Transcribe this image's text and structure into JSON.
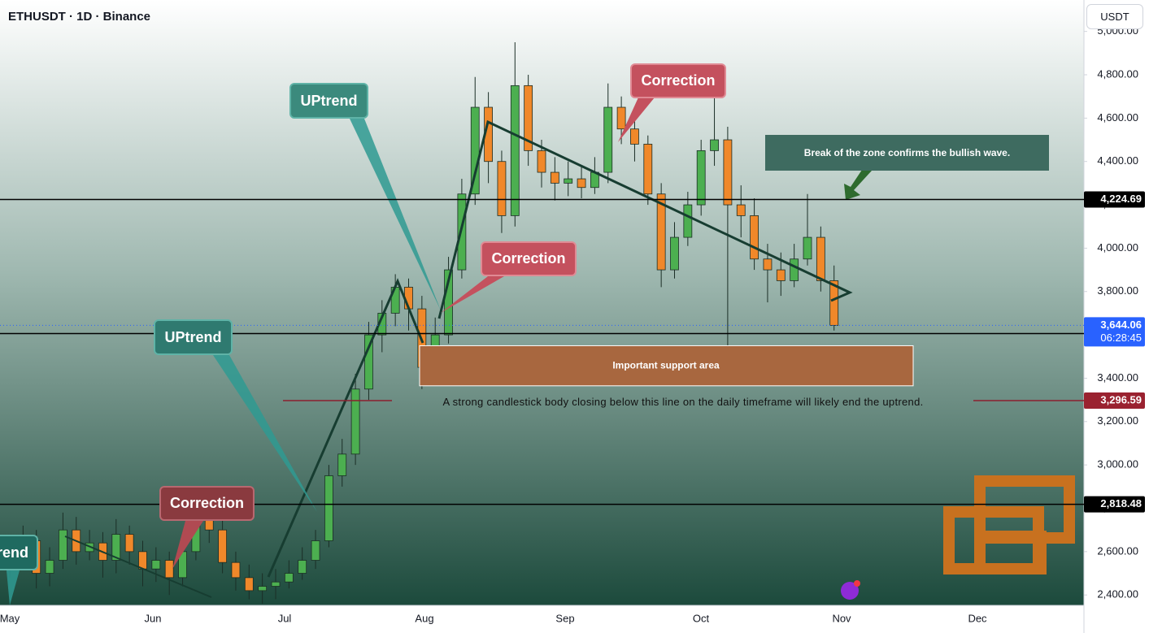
{
  "header": "ETHUSDT · 1D · Binance",
  "currency_button": "USDT",
  "chart_data": {
    "type": "candlestick",
    "x_labels": [
      "May",
      "Jun",
      "Jul",
      "Aug",
      "Sep",
      "Oct",
      "Nov",
      "Dec"
    ],
    "up_color": "#4caf50",
    "down_color": "#f0882a",
    "ylim": [
      2352,
      5145
    ],
    "yticks": [
      {
        "value": 2400,
        "label": "2,400.00"
      },
      {
        "value": 2600,
        "label": "2,600.00"
      },
      {
        "value": 2800,
        "label": "2,800.00"
      },
      {
        "value": 3000,
        "label": "3,000.00"
      },
      {
        "value": 3200,
        "label": "3,200.00"
      },
      {
        "value": 3400,
        "label": "3,400.00"
      },
      {
        "value": 3600,
        "label": "3,600.00"
      },
      {
        "value": 3800,
        "label": "3,800.00"
      },
      {
        "value": 4000,
        "label": "4,000.00"
      },
      {
        "value": 4200,
        "label": "4,200.00"
      },
      {
        "value": 4400,
        "label": "4,400.00"
      },
      {
        "value": 4600,
        "label": "4,600.00"
      },
      {
        "value": 4800,
        "label": "4,800.00"
      },
      {
        "value": 5000,
        "label": "5,000.00"
      }
    ],
    "open": [
      2550,
      2600,
      2650,
      2500,
      2560,
      2700,
      2600,
      2640,
      2560,
      2680,
      2600,
      2520,
      2560,
      2480,
      2600,
      2780,
      2700,
      2550,
      2480,
      2420,
      2440,
      2460,
      2500,
      2560,
      2650,
      2950,
      3050,
      3350,
      3600,
      3700,
      3820,
      3720,
      3450,
      3600,
      3900,
      4250,
      4650,
      4400,
      4150,
      4750,
      4450,
      4350,
      4300,
      4320,
      4280,
      4350,
      4650,
      4550,
      4480,
      4250,
      3900,
      4050,
      4200,
      4450,
      4500,
      4200,
      4150,
      3950,
      3900,
      3850,
      3950,
      4050,
      3850
    ],
    "high": [
      2670,
      2720,
      2700,
      2620,
      2780,
      2760,
      2700,
      2690,
      2750,
      2720,
      2650,
      2620,
      2600,
      2660,
      2850,
      2830,
      2760,
      2600,
      2540,
      2500,
      2520,
      2560,
      2620,
      2700,
      3000,
      3120,
      3420,
      3660,
      3760,
      3880,
      3860,
      3780,
      3680,
      3960,
      4320,
      4790,
      4720,
      4450,
      4950,
      4800,
      4500,
      4420,
      4400,
      4380,
      4420,
      4760,
      4700,
      4620,
      4520,
      4300,
      4120,
      4260,
      4500,
      4760,
      4560,
      4290,
      4230,
      4020,
      3980,
      4020,
      4250,
      4100,
      3920
    ],
    "low": [
      2480,
      2560,
      2430,
      2440,
      2520,
      2540,
      2560,
      2480,
      2500,
      2540,
      2440,
      2460,
      2400,
      2440,
      2560,
      2640,
      2500,
      2420,
      2380,
      2360,
      2380,
      2430,
      2470,
      2520,
      2620,
      2900,
      3000,
      3300,
      3520,
      3640,
      3620,
      3350,
      3400,
      3560,
      3860,
      4200,
      4300,
      4070,
      4100,
      4380,
      4280,
      4220,
      4240,
      4230,
      4250,
      4300,
      4480,
      4400,
      4200,
      3820,
      3860,
      4010,
      4150,
      4380,
      3450,
      4050,
      3900,
      3750,
      3780,
      3820,
      3920,
      3800,
      3620
    ],
    "close": [
      2600,
      2650,
      2500,
      2560,
      2700,
      2600,
      2640,
      2560,
      2680,
      2600,
      2520,
      2560,
      2480,
      2600,
      2780,
      2700,
      2550,
      2480,
      2420,
      2440,
      2460,
      2500,
      2560,
      2650,
      2950,
      3050,
      3350,
      3600,
      3700,
      3820,
      3720,
      3450,
      3600,
      3900,
      4250,
      4650,
      4400,
      4150,
      4750,
      4450,
      4350,
      4300,
      4320,
      4280,
      4350,
      4650,
      4550,
      4480,
      4250,
      3900,
      4050,
      4200,
      4450,
      4500,
      4200,
      4150,
      3950,
      3900,
      3850,
      3950,
      4050,
      3850,
      3644
    ],
    "price_lines": [
      {
        "value": 4224.69,
        "label": "4,224.69"
      },
      {
        "value": 3605.96,
        "label": "3,605.96"
      },
      {
        "value": 3296.59,
        "label": "3,296.59"
      },
      {
        "value": 2818.48,
        "label": "2,818.48"
      }
    ],
    "last_price": {
      "value": 3644.06,
      "label": "3,644.06",
      "countdown": "06:28:45"
    },
    "support_zone": {
      "label": "Important support area",
      "top": 3550,
      "bottom": 3365
    },
    "annotations": [
      "UPtrend",
      "UPtrend",
      "trend",
      "Correction",
      "Correction",
      "Correction",
      "Break of the zone confirms the bullish wave.",
      "A strong candlestick body closing below this line on the daily timeframe will likely end the uptrend."
    ]
  }
}
